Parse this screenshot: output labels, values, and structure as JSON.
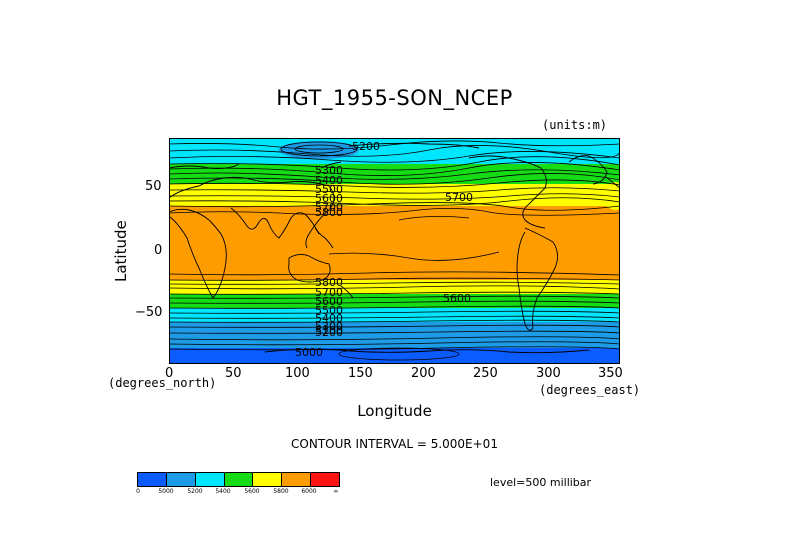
{
  "title": "HGT_1955-SON_NCEP",
  "units": "(units:m)",
  "yaxis": {
    "title": "Latitude",
    "unit_label": "(degrees_north)",
    "ticks": [
      "50",
      "0",
      "−50"
    ]
  },
  "xaxis": {
    "title": "Longitude",
    "unit_label": "(degrees_east)",
    "ticks": [
      "0",
      "50",
      "100",
      "150",
      "200",
      "250",
      "300",
      "350"
    ]
  },
  "contour_interval": "CONTOUR INTERVAL = 5.000E+01",
  "level": "level=500 millibar",
  "contour_labels": [
    "5200",
    "5300",
    "5400",
    "5500",
    "5600",
    "5700",
    "5800",
    "5800",
    "5700",
    "5600",
    "5500",
    "5400",
    "5300",
    "5200",
    "5100",
    "5000",
    "5700",
    "5600"
  ],
  "colorbar": {
    "colors": [
      "#0a5cff",
      "#1e9be6",
      "#00e6ff",
      "#16dc16",
      "#ffff00",
      "#ff9c00",
      "#ff1414"
    ],
    "labels": [
      "0",
      "5000",
      "5200",
      "5400",
      "5600",
      "5800",
      "6000",
      "∞"
    ]
  },
  "field_colors": {
    "below_5000": "#0a5cff",
    "5000_5200": "#1e9be6",
    "5200_5400": "#00e6ff",
    "5400_5600": "#16dc16",
    "5600_5800": "#ffff00",
    "5800_6000": "#ff9c00"
  }
}
